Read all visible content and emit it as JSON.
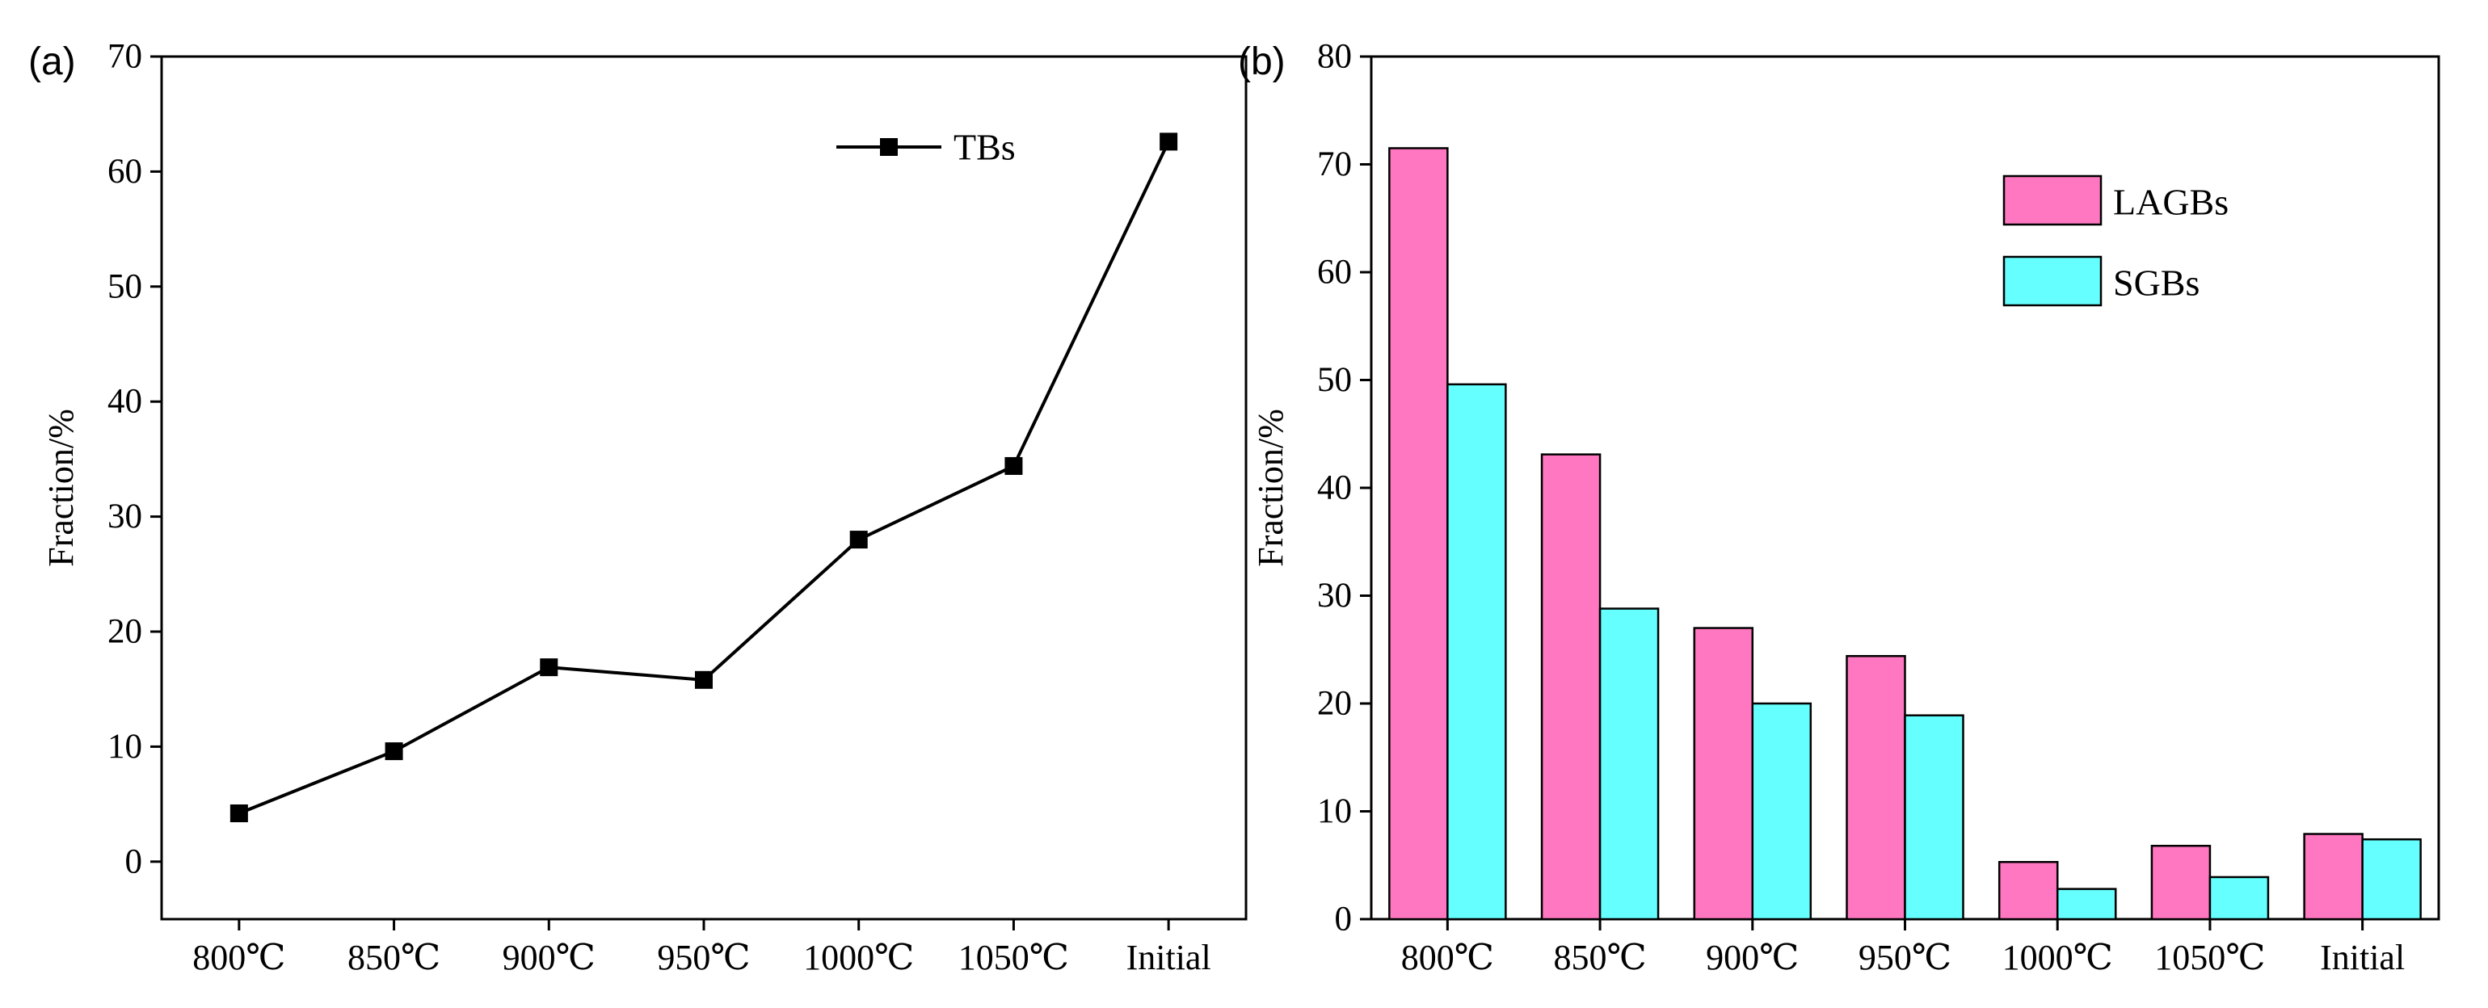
{
  "chart_data": [
    {
      "type": "line",
      "panel_label": "(a)",
      "title": "",
      "xlabel": "",
      "ylabel": "Fraction/%",
      "categories": [
        "800℃",
        "850℃",
        "900℃",
        "950℃",
        "1000℃",
        "1050℃",
        "Initial"
      ],
      "series": [
        {
          "name": "TBs",
          "values": [
            4.2,
            9.6,
            16.9,
            15.8,
            28.0,
            34.4,
            62.6
          ],
          "color": "#000000",
          "marker": "square"
        }
      ],
      "ylim": [
        -5,
        70
      ],
      "yticks": [
        0,
        10,
        20,
        30,
        40,
        50,
        60,
        70
      ],
      "legend": "top-right",
      "grid": false
    },
    {
      "type": "bar",
      "panel_label": "(b)",
      "title": "",
      "xlabel": "",
      "ylabel": "Fraction/%",
      "categories": [
        "800℃",
        "850℃",
        "900℃",
        "950℃",
        "1000℃",
        "1050℃",
        "Initial"
      ],
      "series": [
        {
          "name": "LAGBs",
          "values": [
            71.5,
            43.1,
            27.0,
            24.4,
            5.3,
            6.8,
            7.9
          ],
          "color": "#ff77c0"
        },
        {
          "name": "SGBs",
          "values": [
            49.6,
            28.8,
            20.0,
            18.9,
            2.8,
            3.9,
            7.4
          ],
          "color": "#66ffff"
        }
      ],
      "ylim": [
        0,
        80
      ],
      "yticks": [
        0,
        10,
        20,
        30,
        40,
        50,
        60,
        70,
        80
      ],
      "legend": "top-right",
      "grid": false
    }
  ]
}
